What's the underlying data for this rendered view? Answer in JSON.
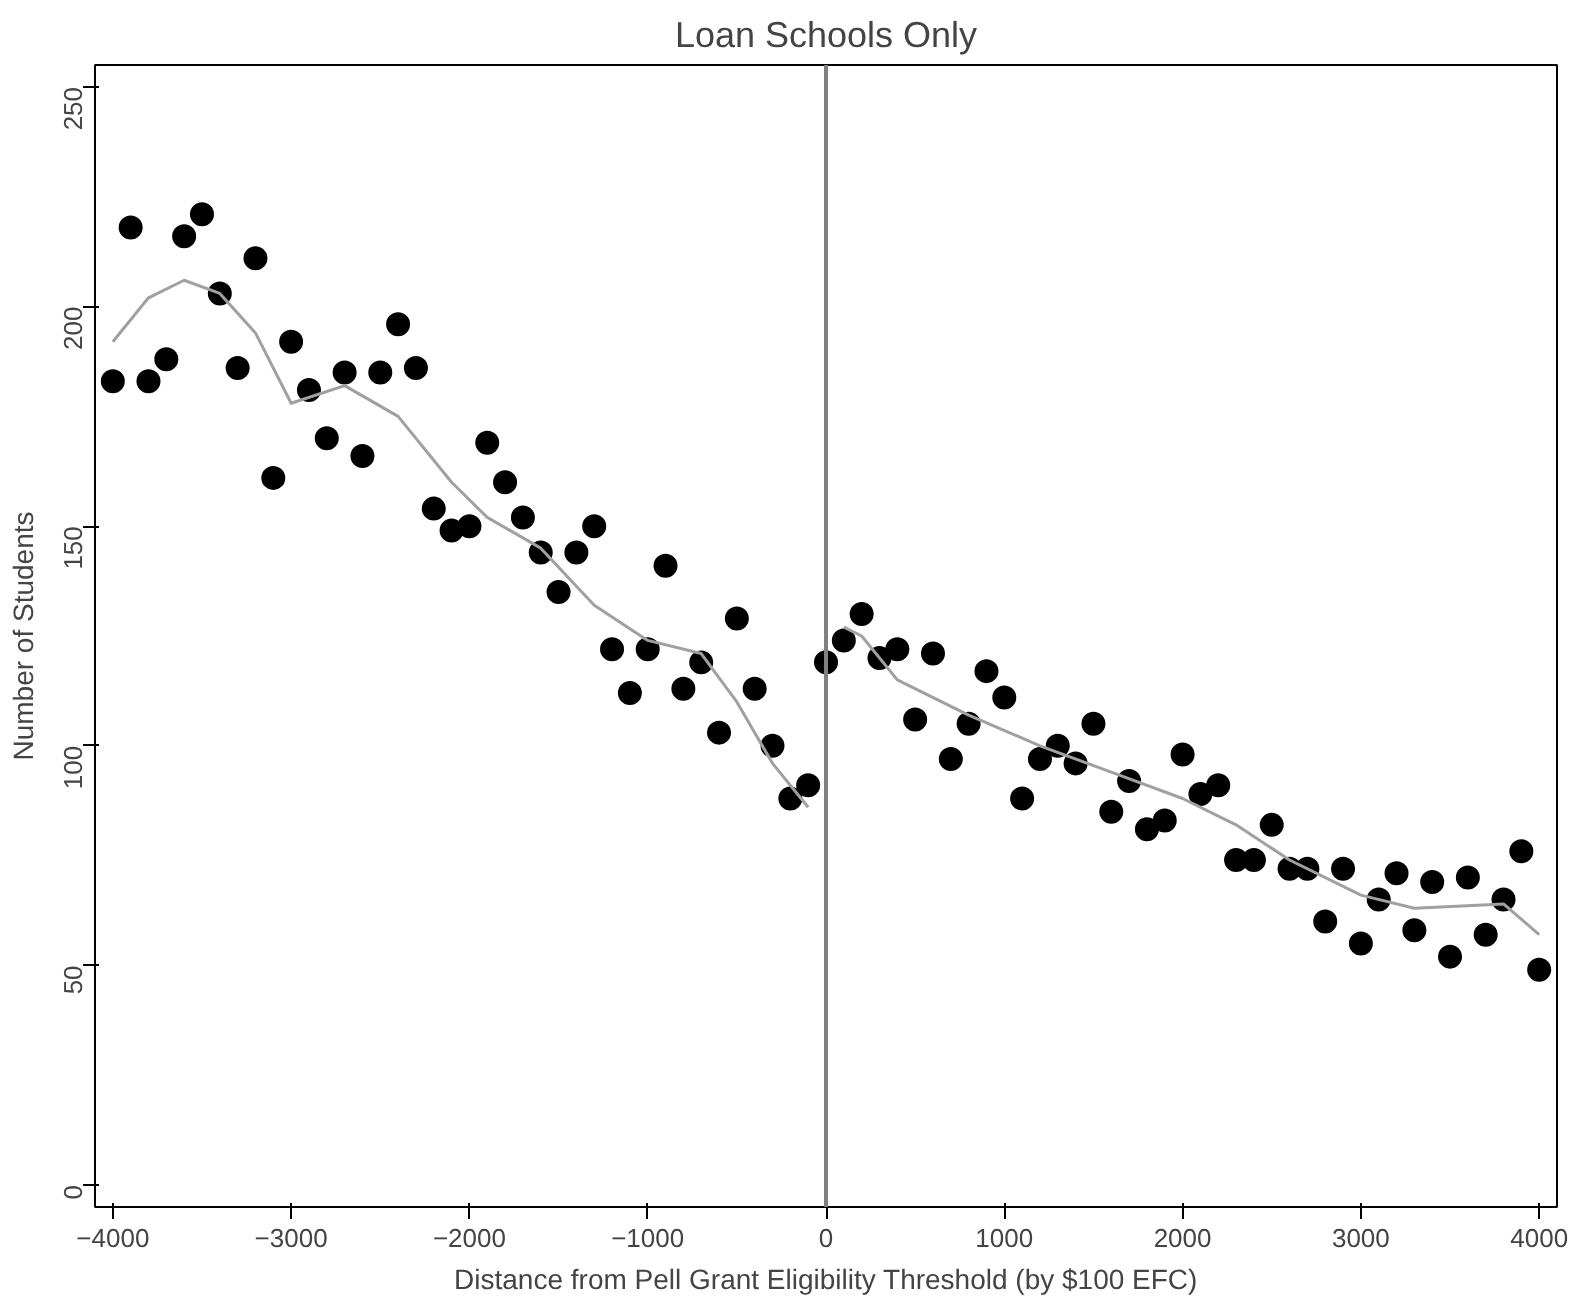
{
  "chart_data": {
    "type": "scatter",
    "title": "Loan Schools Only",
    "xlabel": "Distance from Pell Grant Eligibility Threshold (by $100 EFC)",
    "ylabel": "Number of Students",
    "xlim": [
      -4100,
      4100
    ],
    "ylim": [
      -5,
      255
    ],
    "xticks": [
      -4000,
      -3000,
      -2000,
      -1000,
      0,
      1000,
      2000,
      3000,
      4000
    ],
    "yticks": [
      0,
      50,
      100,
      150,
      200,
      250
    ],
    "grid": false,
    "ref_lines": [
      {
        "axis": "x",
        "value": 0,
        "color": "#808080"
      }
    ],
    "series": [
      {
        "marker": "circle",
        "color": "#000000",
        "x": [
          -4000,
          -3900,
          -3800,
          -3700,
          -3600,
          -3500,
          -3400,
          -3300,
          -3200,
          -3100,
          -3000,
          -2900,
          -2800,
          -2700,
          -2600,
          -2500,
          -2400,
          -2300,
          -2200,
          -2100,
          -2000,
          -1900,
          -1800,
          -1700,
          -1600,
          -1500,
          -1400,
          -1300,
          -1200,
          -1100,
          -1000,
          -900,
          -800,
          -700,
          -600,
          -500,
          -400,
          -300,
          -200,
          -100,
          0,
          100,
          200,
          300,
          400,
          500,
          600,
          700,
          800,
          900,
          1000,
          1100,
          1200,
          1300,
          1400,
          1500,
          1600,
          1700,
          1800,
          1900,
          2000,
          2100,
          2200,
          2300,
          2400,
          2500,
          2600,
          2700,
          2800,
          2900,
          3000,
          3100,
          3200,
          3300,
          3400,
          3500,
          3600,
          3700,
          3800,
          3900,
          4000
        ],
        "values": [
          183,
          218,
          183,
          188,
          216,
          221,
          203,
          186,
          211,
          161,
          192,
          181,
          170,
          185,
          166,
          185,
          196,
          186,
          154,
          149,
          150,
          169,
          160,
          152,
          144,
          135,
          144,
          150,
          122,
          112,
          122,
          141,
          113,
          119,
          103,
          129,
          113,
          100,
          88,
          91,
          119,
          124,
          130,
          120,
          122,
          106,
          121,
          97,
          105,
          117,
          111,
          88,
          97,
          100,
          96,
          105,
          85,
          92,
          81,
          83,
          98,
          89,
          91,
          74,
          74,
          82,
          72,
          72,
          60,
          72,
          55,
          65,
          71,
          58,
          69,
          52,
          70,
          57,
          65,
          76,
          49
        ]
      },
      {
        "type": "line",
        "marker": "none",
        "color": "#a0a0a0",
        "x": [
          -4000,
          -3800,
          -3600,
          -3400,
          -3200,
          -3000,
          -2700,
          -2400,
          -2100,
          -1900,
          -1600,
          -1300,
          -1000,
          -700,
          -500,
          -300,
          -100
        ],
        "values": [
          192,
          202,
          206,
          203,
          194,
          178,
          182,
          175,
          160,
          152,
          145,
          132,
          124,
          121,
          110,
          96,
          86
        ]
      },
      {
        "type": "line",
        "marker": "none",
        "color": "#a0a0a0",
        "x": [
          100,
          200,
          400,
          800,
          1200,
          1600,
          2000,
          2300,
          2600,
          3000,
          3300,
          3800,
          4000
        ],
        "values": [
          127,
          125,
          115,
          107,
          100,
          94,
          88,
          82,
          74,
          66,
          63,
          64,
          57
        ]
      }
    ]
  }
}
